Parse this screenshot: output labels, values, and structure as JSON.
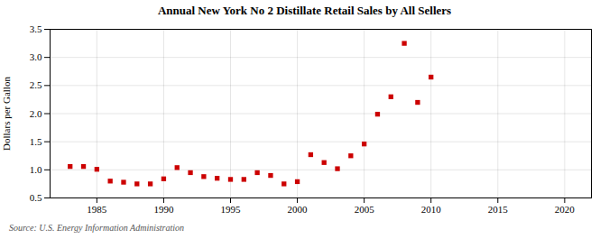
{
  "chart_data": {
    "type": "scatter",
    "title": "Annual New York No 2 Distillate Retail Sales by All Sellers",
    "ylabel": "Dollars per Gallon",
    "annotations": [
      "Source: U.S. Energy Information Administration"
    ],
    "color": "#cc0000",
    "marker": "square",
    "grid": true,
    "xlim": [
      1981.5,
      2022
    ],
    "ylim": [
      0.5,
      3.5
    ],
    "xticks": [
      1985,
      1990,
      1995,
      2000,
      2005,
      2010,
      2015,
      2020
    ],
    "yticks": [
      0.5,
      {
        "value": 1,
        "label": "1.0"
      },
      1.5,
      {
        "value": 2,
        "label": "2.0"
      },
      2.5,
      {
        "value": 3,
        "label": "3.0"
      },
      3.5
    ],
    "x": [
      1983,
      1984,
      1985,
      1986,
      1987,
      1988,
      1989,
      1990,
      1991,
      1992,
      1993,
      1994,
      1995,
      1996,
      1997,
      1998,
      1999,
      2000,
      2001,
      2002,
      2003,
      2004,
      2005,
      2006,
      2007,
      2008,
      2009,
      2010
    ],
    "values": [
      1.06,
      1.06,
      1.01,
      0.8,
      0.78,
      0.75,
      0.75,
      0.84,
      1.04,
      0.95,
      0.88,
      0.85,
      0.83,
      0.83,
      0.95,
      0.9,
      0.75,
      0.79,
      1.27,
      1.13,
      1.02,
      1.25,
      1.46,
      1.99,
      2.3,
      3.25,
      2.2,
      2.65
    ]
  }
}
